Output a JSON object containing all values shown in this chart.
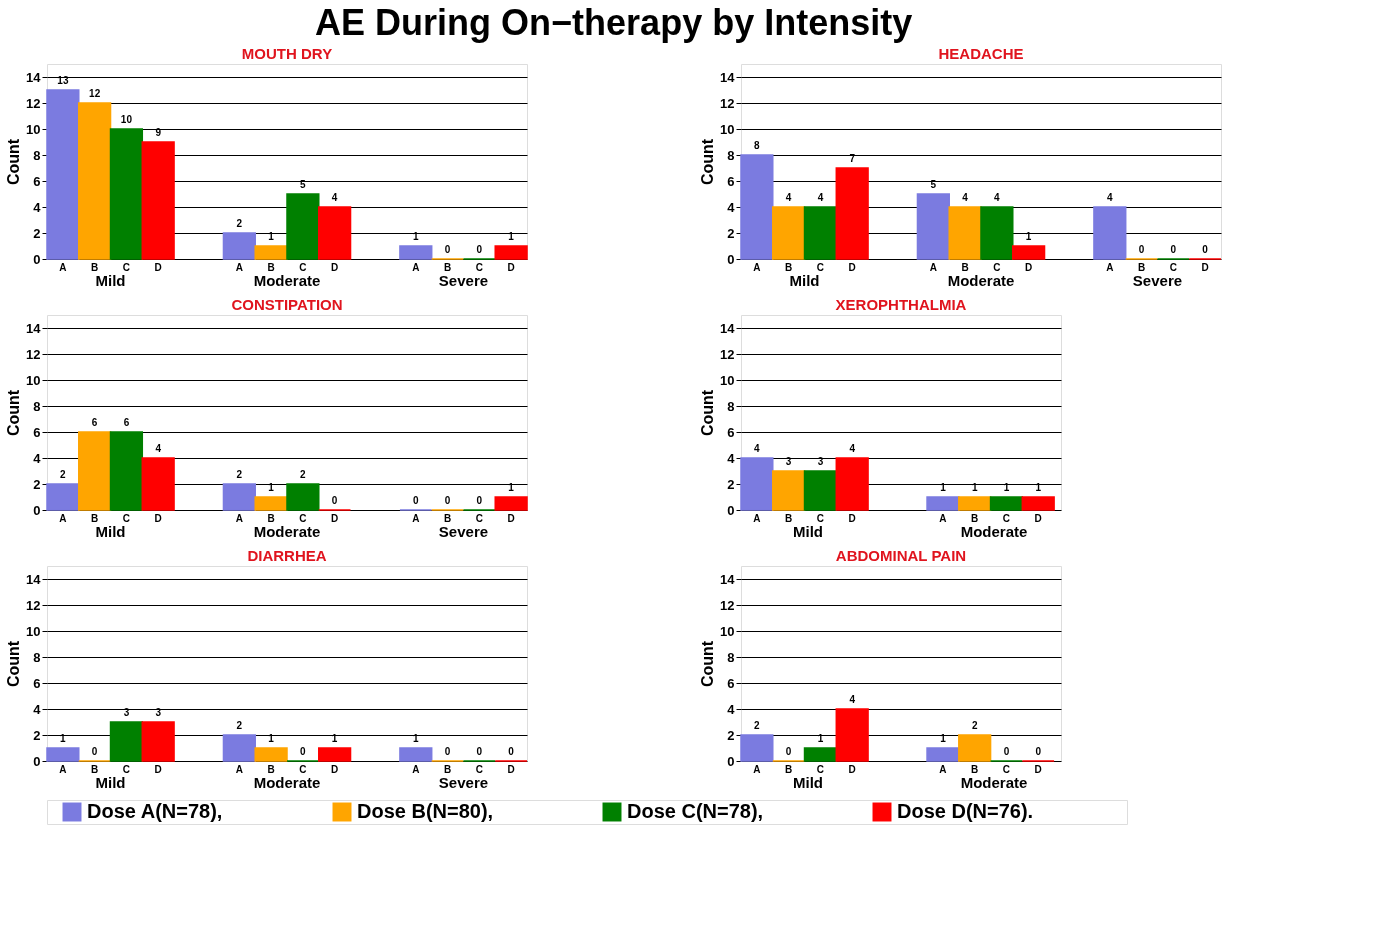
{
  "chart_data": [
    {
      "type": "bar",
      "title": "MOUTH DRY",
      "subtitle": "AE During On−therapy by Intensity",
      "ylabel": "Count",
      "categories": [
        "Mild",
        "Moderate",
        "Severe"
      ],
      "ylim": [
        0,
        15
      ],
      "yticks": [
        0,
        2,
        4,
        6,
        8,
        10,
        12,
        14
      ],
      "grid": "y",
      "data_labels": true,
      "legend": "bottom",
      "annotations": [
        "A",
        "B",
        "C",
        "D"
      ],
      "series": [
        {
          "name": "Dose A(N=78),",
          "color": "#7b7be0",
          "values": [
            13,
            2,
            1
          ]
        },
        {
          "name": "Dose B(N=80),",
          "color": "#ffa500",
          "values": [
            12,
            1,
            0
          ]
        },
        {
          "name": "Dose C(N=78),",
          "color": "#008000",
          "values": [
            10,
            5,
            0
          ]
        },
        {
          "name": "Dose D(N=76).",
          "color": "#ff0000",
          "values": [
            9,
            4,
            1
          ]
        }
      ]
    },
    {
      "type": "bar",
      "title": "HEADACHE",
      "ylabel": "Count",
      "categories": [
        "Mild",
        "Moderate",
        "Severe"
      ],
      "ylim": [
        0,
        15
      ],
      "yticks": [
        0,
        2,
        4,
        6,
        8,
        10,
        12,
        14
      ],
      "grid": "y",
      "data_labels": true,
      "legend": "bottom",
      "annotations": [
        "A",
        "B",
        "C",
        "D"
      ],
      "series": [
        {
          "name": "Dose A(N=78),",
          "color": "#7b7be0",
          "values": [
            8,
            5,
            4
          ]
        },
        {
          "name": "Dose B(N=80),",
          "color": "#ffa500",
          "values": [
            4,
            4,
            0
          ]
        },
        {
          "name": "Dose C(N=78),",
          "color": "#008000",
          "values": [
            4,
            4,
            0
          ]
        },
        {
          "name": "Dose D(N=76).",
          "color": "#ff0000",
          "values": [
            7,
            1,
            0
          ]
        }
      ]
    },
    {
      "type": "bar",
      "title": "CONSTIPATION",
      "ylabel": "Count",
      "categories": [
        "Mild",
        "Moderate",
        "Severe"
      ],
      "ylim": [
        0,
        15
      ],
      "yticks": [
        0,
        2,
        4,
        6,
        8,
        10,
        12,
        14
      ],
      "grid": "y",
      "data_labels": true,
      "legend": "bottom",
      "annotations": [
        "A",
        "B",
        "C",
        "D"
      ],
      "series": [
        {
          "name": "Dose A(N=78),",
          "color": "#7b7be0",
          "values": [
            2,
            2,
            0
          ]
        },
        {
          "name": "Dose B(N=80),",
          "color": "#ffa500",
          "values": [
            6,
            1,
            0
          ]
        },
        {
          "name": "Dose C(N=78),",
          "color": "#008000",
          "values": [
            6,
            2,
            0
          ]
        },
        {
          "name": "Dose D(N=76).",
          "color": "#ff0000",
          "values": [
            4,
            0,
            1
          ]
        }
      ]
    },
    {
      "type": "bar",
      "title": "XEROPHTHALMIA",
      "ylabel": "Count",
      "categories": [
        "Mild",
        "Moderate"
      ],
      "ylim": [
        0,
        15
      ],
      "yticks": [
        0,
        2,
        4,
        6,
        8,
        10,
        12,
        14
      ],
      "grid": "y",
      "data_labels": true,
      "legend": "bottom",
      "annotations": [
        "A",
        "B",
        "C",
        "D"
      ],
      "series": [
        {
          "name": "Dose A(N=78),",
          "color": "#7b7be0",
          "values": [
            4,
            1
          ]
        },
        {
          "name": "Dose B(N=80),",
          "color": "#ffa500",
          "values": [
            3,
            1
          ]
        },
        {
          "name": "Dose C(N=78),",
          "color": "#008000",
          "values": [
            3,
            1
          ]
        },
        {
          "name": "Dose D(N=76).",
          "color": "#ff0000",
          "values": [
            4,
            1
          ]
        }
      ]
    },
    {
      "type": "bar",
      "title": "DIARRHEA",
      "ylabel": "Count",
      "categories": [
        "Mild",
        "Moderate",
        "Severe"
      ],
      "ylim": [
        0,
        15
      ],
      "yticks": [
        0,
        2,
        4,
        6,
        8,
        10,
        12,
        14
      ],
      "grid": "y",
      "data_labels": true,
      "legend": "bottom",
      "annotations": [
        "A",
        "B",
        "C",
        "D"
      ],
      "series": [
        {
          "name": "Dose A(N=78),",
          "color": "#7b7be0",
          "values": [
            1,
            2,
            1
          ]
        },
        {
          "name": "Dose B(N=80),",
          "color": "#ffa500",
          "values": [
            0,
            1,
            0
          ]
        },
        {
          "name": "Dose C(N=78),",
          "color": "#008000",
          "values": [
            3,
            0,
            0
          ]
        },
        {
          "name": "Dose D(N=76).",
          "color": "#ff0000",
          "values": [
            3,
            1,
            0
          ]
        }
      ]
    },
    {
      "type": "bar",
      "title": "ABDOMINAL PAIN",
      "ylabel": "Count",
      "categories": [
        "Mild",
        "Moderate"
      ],
      "ylim": [
        0,
        15
      ],
      "yticks": [
        0,
        2,
        4,
        6,
        8,
        10,
        12,
        14
      ],
      "grid": "y",
      "data_labels": true,
      "legend": "bottom",
      "annotations": [
        "A",
        "B",
        "C",
        "D"
      ],
      "series": [
        {
          "name": "Dose A(N=78),",
          "color": "#7b7be0",
          "values": [
            2,
            1
          ]
        },
        {
          "name": "Dose B(N=80),",
          "color": "#ffa500",
          "values": [
            0,
            2
          ]
        },
        {
          "name": "Dose C(N=78),",
          "color": "#008000",
          "values": [
            1,
            0
          ]
        },
        {
          "name": "Dose D(N=76).",
          "color": "#ff0000",
          "values": [
            4,
            0
          ]
        }
      ]
    }
  ]
}
